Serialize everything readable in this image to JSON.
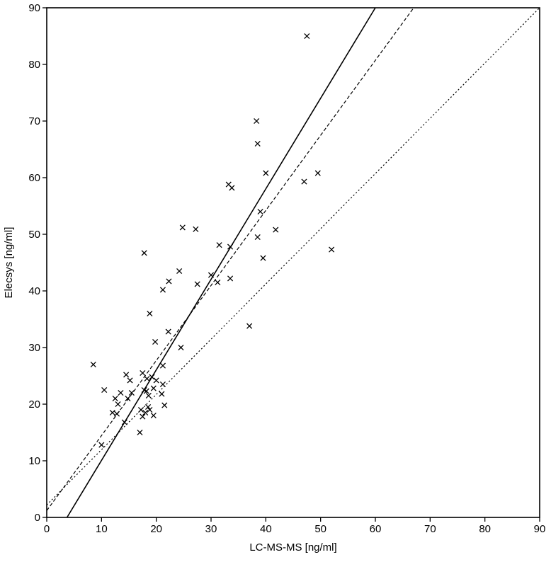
{
  "chart_data": {
    "type": "scatter",
    "title": "",
    "xlabel": "LC-MS-MS   [ng/ml]",
    "ylabel": "Elecsys   [ng/ml]",
    "xlim": [
      0,
      90
    ],
    "ylim": [
      0,
      90
    ],
    "x_ticks": [
      0,
      10,
      20,
      30,
      40,
      50,
      60,
      70,
      80,
      90
    ],
    "y_ticks": [
      0,
      10,
      20,
      30,
      40,
      50,
      60,
      70,
      80,
      90
    ],
    "grid": false,
    "marker": "x",
    "points": [
      {
        "x": 8.5,
        "y": 27.0
      },
      {
        "x": 10.0,
        "y": 12.8
      },
      {
        "x": 10.5,
        "y": 22.5
      },
      {
        "x": 12.0,
        "y": 18.5
      },
      {
        "x": 12.5,
        "y": 21.0
      },
      {
        "x": 12.8,
        "y": 18.3
      },
      {
        "x": 13.0,
        "y": 20.0
      },
      {
        "x": 13.5,
        "y": 22.0
      },
      {
        "x": 14.2,
        "y": 16.8
      },
      {
        "x": 14.5,
        "y": 25.2
      },
      {
        "x": 14.8,
        "y": 21.0
      },
      {
        "x": 15.2,
        "y": 24.2
      },
      {
        "x": 15.5,
        "y": 22.0
      },
      {
        "x": 17.0,
        "y": 15.0
      },
      {
        "x": 17.2,
        "y": 19.0
      },
      {
        "x": 17.5,
        "y": 25.5
      },
      {
        "x": 17.5,
        "y": 17.8
      },
      {
        "x": 17.8,
        "y": 46.7
      },
      {
        "x": 17.8,
        "y": 22.5
      },
      {
        "x": 18.0,
        "y": 18.5
      },
      {
        "x": 18.2,
        "y": 22.3
      },
      {
        "x": 18.3,
        "y": 24.5
      },
      {
        "x": 18.5,
        "y": 19.5
      },
      {
        "x": 18.6,
        "y": 21.5
      },
      {
        "x": 18.8,
        "y": 36.0
      },
      {
        "x": 18.8,
        "y": 19.0
      },
      {
        "x": 19.2,
        "y": 24.8
      },
      {
        "x": 19.5,
        "y": 18.0
      },
      {
        "x": 19.5,
        "y": 22.8
      },
      {
        "x": 19.8,
        "y": 31.0
      },
      {
        "x": 20.0,
        "y": 24.2
      },
      {
        "x": 21.0,
        "y": 21.8
      },
      {
        "x": 21.2,
        "y": 40.2
      },
      {
        "x": 21.2,
        "y": 26.8
      },
      {
        "x": 21.2,
        "y": 23.5
      },
      {
        "x": 21.5,
        "y": 19.8
      },
      {
        "x": 22.2,
        "y": 32.8
      },
      {
        "x": 22.3,
        "y": 41.7
      },
      {
        "x": 24.2,
        "y": 43.5
      },
      {
        "x": 24.5,
        "y": 30.0
      },
      {
        "x": 24.8,
        "y": 51.2
      },
      {
        "x": 27.2,
        "y": 50.9
      },
      {
        "x": 27.5,
        "y": 41.2
      },
      {
        "x": 30.0,
        "y": 42.8
      },
      {
        "x": 31.2,
        "y": 41.5
      },
      {
        "x": 31.5,
        "y": 48.1
      },
      {
        "x": 33.2,
        "y": 58.8
      },
      {
        "x": 33.5,
        "y": 47.8
      },
      {
        "x": 33.5,
        "y": 42.2
      },
      {
        "x": 33.8,
        "y": 58.2
      },
      {
        "x": 37.0,
        "y": 33.8
      },
      {
        "x": 38.3,
        "y": 70.0
      },
      {
        "x": 38.5,
        "y": 66.0
      },
      {
        "x": 38.5,
        "y": 49.5
      },
      {
        "x": 39.0,
        "y": 54.0
      },
      {
        "x": 39.5,
        "y": 45.8
      },
      {
        "x": 40.0,
        "y": 60.8
      },
      {
        "x": 41.8,
        "y": 50.8
      },
      {
        "x": 47.0,
        "y": 59.3
      },
      {
        "x": 47.5,
        "y": 85.0
      },
      {
        "x": 49.5,
        "y": 60.8
      },
      {
        "x": 52.0,
        "y": 47.3
      }
    ],
    "lines": [
      {
        "style": "solid",
        "x": [
          3.7,
          60.0
        ],
        "y": [
          0,
          90
        ]
      },
      {
        "style": "dashed",
        "x": [
          0,
          67.0
        ],
        "y": [
          1.2,
          90
        ]
      },
      {
        "style": "dotted",
        "x": [
          0,
          90.0
        ],
        "y": [
          2.2,
          90
        ]
      }
    ]
  }
}
